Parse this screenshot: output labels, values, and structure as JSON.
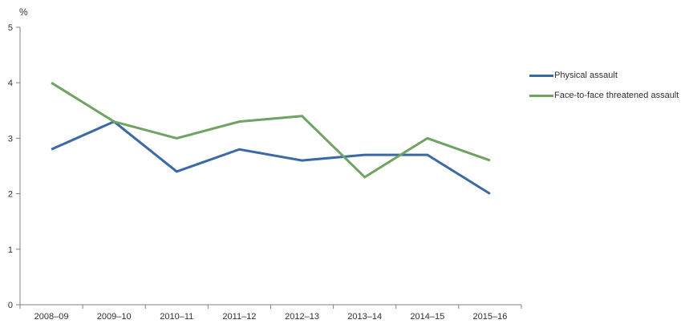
{
  "chart_data": {
    "type": "line",
    "title": "",
    "ylabel": "%",
    "xlabel": "",
    "categories": [
      "2008–09",
      "2009–10",
      "2010–11",
      "2011–12",
      "2012–13",
      "2013–14",
      "2014–15",
      "2015–16"
    ],
    "series": [
      {
        "name": "Physical assault",
        "color": "#3a69a5",
        "values": [
          2.8,
          3.3,
          2.4,
          2.8,
          2.6,
          2.7,
          2.7,
          2.0
        ]
      },
      {
        "name": "Face-to-face threatened assault",
        "color": "#6fa361",
        "values": [
          4.0,
          3.3,
          3.0,
          3.3,
          3.4,
          2.3,
          3.0,
          2.6
        ]
      }
    ],
    "ylim": [
      0,
      5
    ],
    "yticks": [
      0,
      1,
      2,
      3,
      4,
      5
    ],
    "grid": false,
    "legend_position": "right",
    "axis_color": "#808080",
    "tick_label_color": "#303030"
  }
}
